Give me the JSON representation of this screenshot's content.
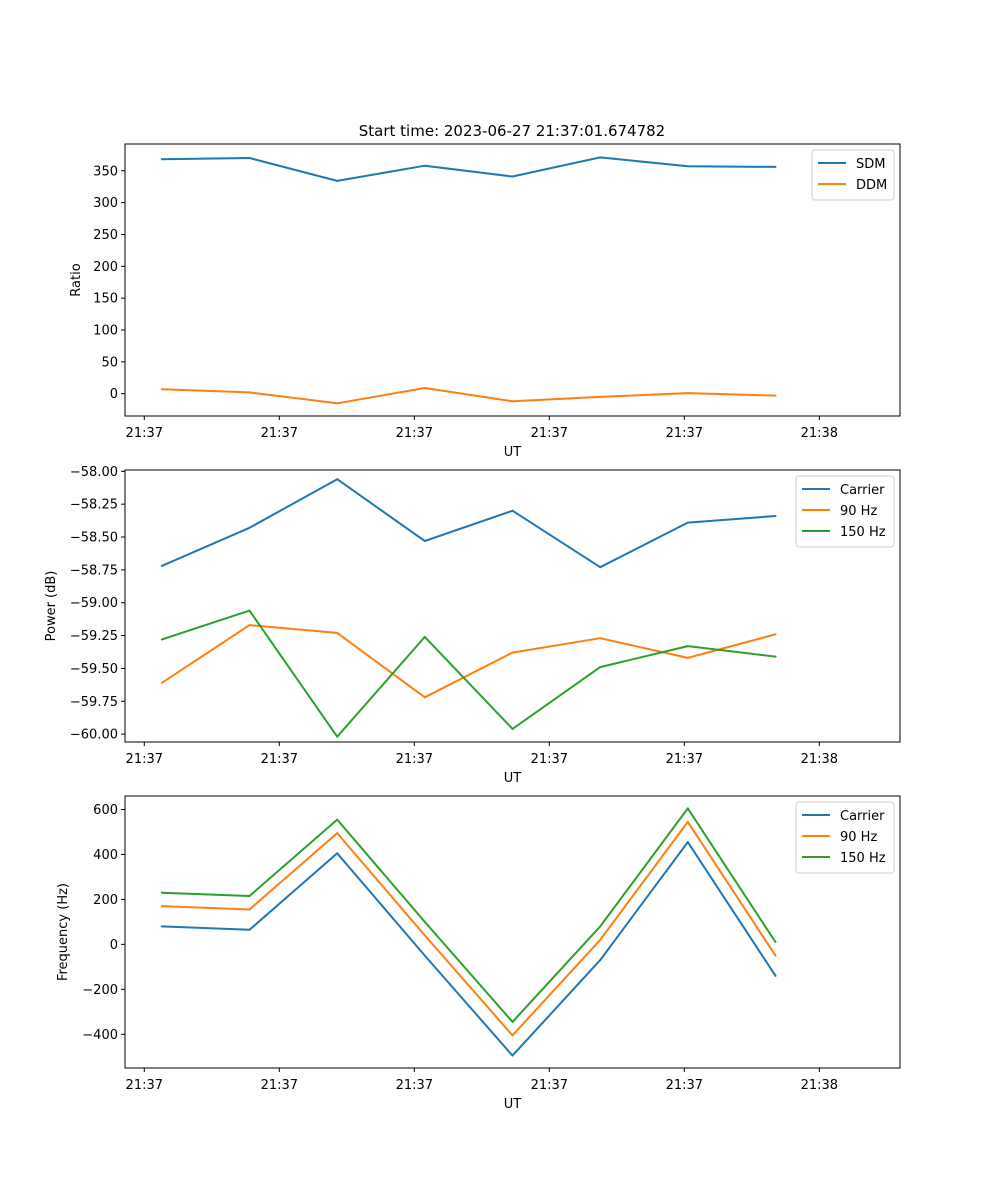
{
  "figure": {
    "title": "Start time: 2023-06-27 21:37:01.674782"
  },
  "chart_data": [
    {
      "type": "line",
      "xlabel": "UT",
      "ylabel": "Ratio",
      "x": [
        1,
        2,
        3,
        4,
        5,
        6,
        7,
        8
      ],
      "xticks": {
        "positions": [
          0.8,
          2.34,
          3.88,
          5.42,
          6.96,
          8.5
        ],
        "labels": [
          "21:37",
          "21:37",
          "21:37",
          "21:37",
          "21:37",
          "21:38"
        ]
      },
      "xlim": [
        0.58,
        9.42
      ],
      "ylim": [
        -35,
        392
      ],
      "yticks": [
        0,
        50,
        100,
        150,
        200,
        250,
        300,
        350
      ],
      "ytick_labels": [
        "0",
        "50",
        "100",
        "150",
        "200",
        "250",
        "300",
        "350"
      ],
      "legend": "top-right",
      "series": [
        {
          "name": "SDM",
          "color": "#1f77b4",
          "values": [
            368,
            370,
            334,
            358,
            341,
            371,
            357,
            356
          ]
        },
        {
          "name": "DDM",
          "color": "#ff7f0e",
          "values": [
            7,
            2,
            -15,
            9,
            -12,
            -5,
            1,
            -3
          ]
        }
      ]
    },
    {
      "type": "line",
      "xlabel": "UT",
      "ylabel": "Power (dB)",
      "x": [
        1,
        2,
        3,
        4,
        5,
        6,
        7,
        8
      ],
      "xticks": {
        "positions": [
          0.8,
          2.34,
          3.88,
          5.42,
          6.96,
          8.5
        ],
        "labels": [
          "21:37",
          "21:37",
          "21:37",
          "21:37",
          "21:37",
          "21:38"
        ]
      },
      "xlim": [
        0.58,
        9.42
      ],
      "ylim": [
        -60.06,
        -57.99
      ],
      "yticks": [
        -60.0,
        -59.75,
        -59.5,
        -59.25,
        -59.0,
        -58.75,
        -58.5,
        -58.25,
        -58.0
      ],
      "ytick_labels": [
        "−60.00",
        "−59.75",
        "−59.50",
        "−59.25",
        "−59.00",
        "−58.75",
        "−58.50",
        "−58.25",
        "−58.00"
      ],
      "legend": "top-right",
      "series": [
        {
          "name": "Carrier",
          "color": "#1f77b4",
          "values": [
            -58.72,
            -58.43,
            -58.06,
            -58.53,
            -58.3,
            -58.73,
            -58.39,
            -58.34
          ]
        },
        {
          "name": "90 Hz",
          "color": "#ff7f0e",
          "values": [
            -59.61,
            -59.17,
            -59.23,
            -59.72,
            -59.38,
            -59.27,
            -59.42,
            -59.24
          ]
        },
        {
          "name": "150 Hz",
          "color": "#2ca02c",
          "values": [
            -59.28,
            -59.06,
            -60.02,
            -59.26,
            -59.96,
            -59.49,
            -59.33,
            -59.41
          ]
        }
      ]
    },
    {
      "type": "line",
      "xlabel": "UT",
      "ylabel": "Frequency (Hz)",
      "x": [
        1,
        2,
        3,
        4,
        5,
        6,
        7,
        8
      ],
      "xticks": {
        "positions": [
          0.8,
          2.34,
          3.88,
          5.42,
          6.96,
          8.5
        ],
        "labels": [
          "21:37",
          "21:37",
          "21:37",
          "21:37",
          "21:37",
          "21:38"
        ]
      },
      "xlim": [
        0.58,
        9.42
      ],
      "ylim": [
        -550,
        660
      ],
      "yticks": [
        -400,
        -200,
        0,
        200,
        400,
        600
      ],
      "ytick_labels": [
        "−400",
        "−200",
        "0",
        "200",
        "400",
        "600"
      ],
      "legend": "top-right",
      "series": [
        {
          "name": "Carrier",
          "color": "#1f77b4",
          "values": [
            80,
            65,
            405,
            -50,
            -495,
            -70,
            455,
            -140
          ]
        },
        {
          "name": "90 Hz",
          "color": "#ff7f0e",
          "values": [
            170,
            155,
            495,
            40,
            -405,
            20,
            545,
            -50
          ]
        },
        {
          "name": "150 Hz",
          "color": "#2ca02c",
          "values": [
            230,
            215,
            555,
            100,
            -345,
            80,
            605,
            10
          ]
        }
      ]
    }
  ]
}
